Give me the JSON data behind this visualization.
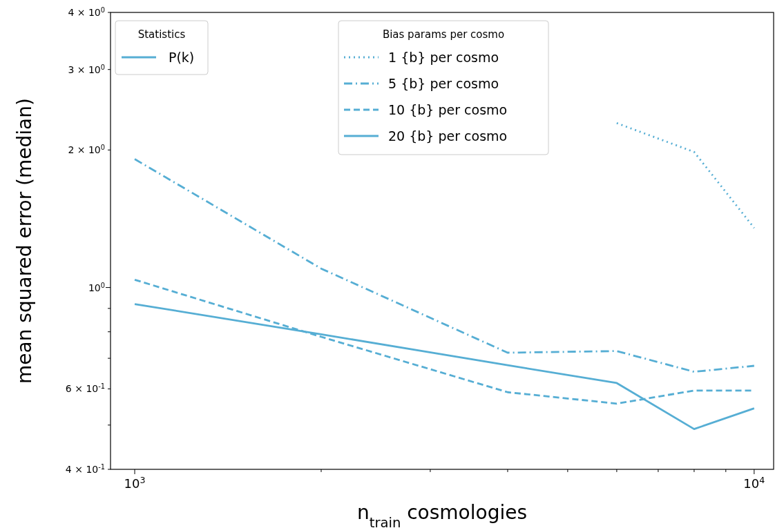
{
  "chart_data": {
    "type": "line",
    "log": "xy",
    "xlabel": "n$_{train}$ cosmologies",
    "ylabel": "mean squared error (median)",
    "legend": "top",
    "legend_title": "Bias params per cosmo",
    "annotations": [
      "Statistics",
      "P(k)"
    ],
    "xlim": [
      914,
      10750
    ],
    "xticks": [
      {
        "value": 1000,
        "label": "10$^{3}$"
      },
      {
        "value": 2000,
        "label": null
      },
      {
        "value": 3000,
        "label": null
      },
      {
        "value": 4000,
        "label": null
      },
      {
        "value": 5000,
        "label": null
      },
      {
        "value": 6000,
        "label": null
      },
      {
        "value": 7000,
        "label": null
      },
      {
        "value": 8000,
        "label": null
      },
      {
        "value": 9000,
        "label": null
      },
      {
        "value": 10000,
        "label": "10$^{4}$"
      }
    ],
    "ylim": [
      0.4,
      4
    ],
    "yticks": [
      {
        "value": 0.4,
        "label": "4 × 10$^{-1}$"
      },
      {
        "value": 0.5,
        "label": null
      },
      {
        "value": 0.6,
        "label": "6 × 10$^{-1}$"
      },
      {
        "value": 0.7,
        "label": null
      },
      {
        "value": 0.8,
        "label": null
      },
      {
        "value": 0.9,
        "label": null
      },
      {
        "value": 1,
        "label": "10$^{0}$"
      },
      {
        "value": 2,
        "label": "2 × 10$^{0}$"
      },
      {
        "value": 3,
        "label": "3 × 10$^{0}$"
      },
      {
        "value": 4,
        "label": "4 × 10$^{0}$"
      }
    ],
    "x": [
      1000,
      2000,
      4000,
      6000,
      8000,
      10000
    ],
    "series": [
      {
        "name": "1 {b} per cosmo",
        "color": "#56aed4",
        "line_style": "dotted",
        "values": [
          null,
          null,
          null,
          2.29,
          1.98,
          1.35
        ]
      },
      {
        "name": "5 {b} per cosmo",
        "color": "#56aed4",
        "line_style": "dashdot",
        "values": [
          1.91,
          1.1,
          0.72,
          0.726,
          0.654,
          0.674
        ]
      },
      {
        "name": "10 {b} per cosmo",
        "color": "#56aed4",
        "line_style": "dashed",
        "values": [
          1.04,
          0.78,
          0.59,
          0.557,
          0.595,
          0.595
        ]
      },
      {
        "name": "20 {b} per cosmo",
        "color": "#56aed4",
        "line_style": "solid",
        "values": [
          0.92,
          0.79,
          0.676,
          0.618,
          0.49,
          0.544
        ]
      }
    ]
  }
}
